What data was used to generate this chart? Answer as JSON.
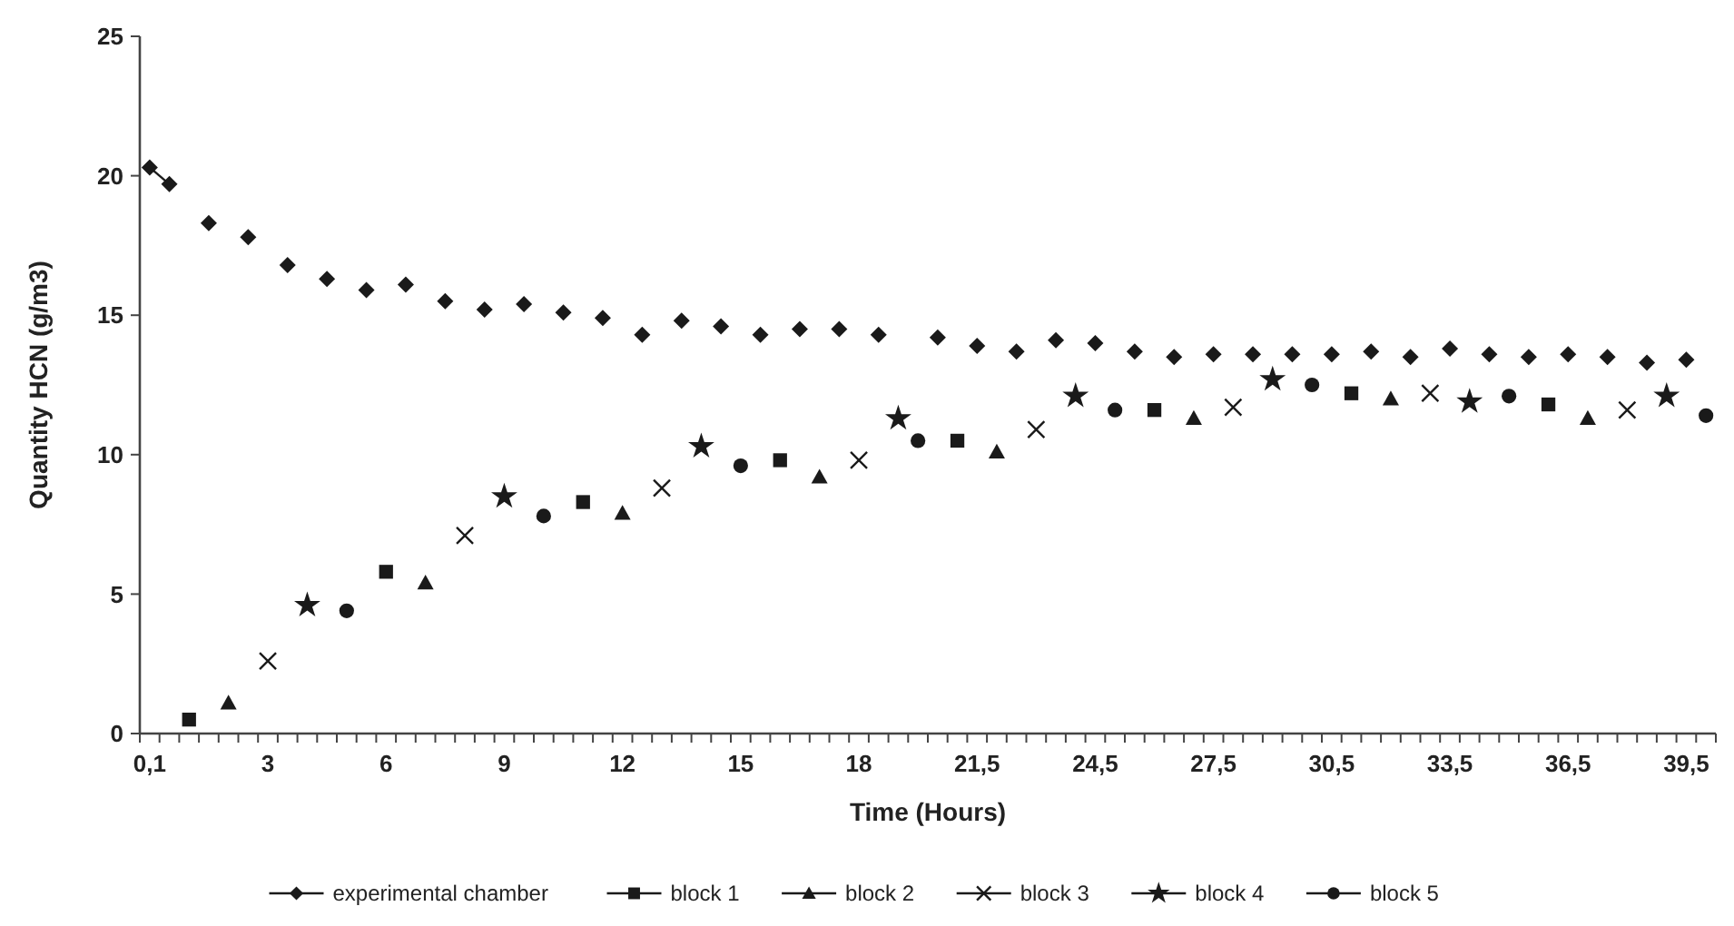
{
  "chart_data": {
    "type": "line",
    "xlabel": "Time (Hours)",
    "ylabel": "Quantity HCN (g/m3)",
    "categories": [
      "0,1",
      null,
      null,
      null,
      null,
      null,
      "3",
      null,
      null,
      null,
      null,
      null,
      "6",
      null,
      null,
      null,
      null,
      null,
      "9",
      null,
      null,
      null,
      null,
      null,
      "12",
      null,
      null,
      null,
      null,
      null,
      "15",
      null,
      null,
      null,
      null,
      null,
      "18",
      null,
      null,
      null,
      null,
      null,
      "21,5",
      null,
      null,
      null,
      null,
      null,
      "24,5",
      null,
      null,
      null,
      null,
      null,
      "27,5",
      null,
      null,
      null,
      null,
      null,
      "30,5",
      null,
      null,
      null,
      null,
      null,
      "33,5",
      null,
      null,
      null,
      null,
      null,
      "36,5",
      null,
      null,
      null,
      null,
      null,
      "39,5",
      null
    ],
    "ylim": [
      0,
      25
    ],
    "yticks": [
      0,
      5,
      10,
      15,
      20,
      25
    ],
    "grid": false,
    "legend": "bottom",
    "line_style": "solid",
    "series": [
      {
        "name": "experimental chamber",
        "color": "#1a1a1a",
        "marker": "diamond",
        "values": [
          20.3,
          19.7,
          null,
          18.3,
          null,
          17.8,
          null,
          16.8,
          null,
          16.3,
          null,
          15.9,
          null,
          16.1,
          null,
          15.5,
          null,
          15.2,
          null,
          15.4,
          null,
          15.1,
          null,
          14.9,
          null,
          14.3,
          null,
          14.8,
          null,
          14.6,
          null,
          14.3,
          null,
          14.5,
          null,
          14.5,
          null,
          14.3,
          null,
          null,
          14.2,
          null,
          13.9,
          null,
          13.7,
          null,
          14.1,
          null,
          14.0,
          null,
          13.7,
          null,
          13.5,
          null,
          13.6,
          null,
          13.6,
          null,
          13.6,
          null,
          13.6,
          null,
          13.7,
          null,
          13.5,
          null,
          13.8,
          null,
          13.6,
          null,
          13.5,
          null,
          13.6,
          null,
          13.5,
          null,
          13.3,
          null,
          13.4,
          null
        ]
      },
      {
        "name": "block 1",
        "type": "scatter",
        "color": "#1a1a1a",
        "marker": "square",
        "values": [
          null,
          null,
          0.5,
          null,
          null,
          null,
          null,
          null,
          null,
          null,
          null,
          null,
          5.8,
          null,
          null,
          null,
          null,
          null,
          null,
          null,
          null,
          null,
          8.3,
          null,
          null,
          null,
          null,
          null,
          null,
          null,
          null,
          null,
          9.8,
          null,
          null,
          null,
          null,
          null,
          null,
          null,
          null,
          10.5,
          null,
          null,
          null,
          null,
          null,
          null,
          null,
          null,
          null,
          11.6,
          null,
          null,
          null,
          null,
          null,
          null,
          null,
          null,
          null,
          12.2,
          null,
          null,
          null,
          null,
          null,
          null,
          null,
          null,
          null,
          11.8,
          null,
          null,
          null,
          null,
          null,
          null,
          null,
          null
        ]
      },
      {
        "name": "block 2",
        "type": "scatter",
        "color": "#1a1a1a",
        "marker": "triangle",
        "values": [
          null,
          null,
          null,
          null,
          1.1,
          null,
          null,
          null,
          null,
          null,
          null,
          null,
          null,
          null,
          5.4,
          null,
          null,
          null,
          null,
          null,
          null,
          null,
          null,
          null,
          7.9,
          null,
          null,
          null,
          null,
          null,
          null,
          null,
          null,
          null,
          9.2,
          null,
          null,
          null,
          null,
          null,
          null,
          null,
          null,
          10.1,
          null,
          null,
          null,
          null,
          null,
          null,
          null,
          null,
          null,
          11.3,
          null,
          null,
          null,
          null,
          null,
          null,
          null,
          null,
          null,
          12.0,
          null,
          null,
          null,
          null,
          null,
          null,
          null,
          null,
          null,
          11.3,
          null,
          null,
          null,
          null,
          null,
          null
        ]
      },
      {
        "name": "block 3",
        "type": "scatter",
        "color": "#1a1a1a",
        "marker": "cross",
        "values": [
          null,
          null,
          null,
          null,
          null,
          null,
          2.6,
          null,
          null,
          null,
          null,
          null,
          null,
          null,
          null,
          null,
          7.1,
          null,
          null,
          null,
          null,
          null,
          null,
          null,
          null,
          null,
          8.8,
          null,
          null,
          null,
          null,
          null,
          null,
          null,
          null,
          null,
          9.8,
          null,
          null,
          null,
          null,
          null,
          null,
          null,
          null,
          10.9,
          null,
          null,
          null,
          null,
          null,
          null,
          null,
          null,
          null,
          11.7,
          null,
          null,
          null,
          null,
          null,
          null,
          null,
          null,
          null,
          12.2,
          null,
          null,
          null,
          null,
          null,
          null,
          null,
          null,
          null,
          11.6,
          null,
          null,
          null,
          null
        ]
      },
      {
        "name": "block 4",
        "type": "scatter",
        "color": "#1a1a1a",
        "marker": "star",
        "values": [
          null,
          null,
          null,
          null,
          null,
          null,
          null,
          null,
          4.6,
          null,
          null,
          null,
          null,
          null,
          null,
          null,
          null,
          null,
          8.5,
          null,
          null,
          null,
          null,
          null,
          null,
          null,
          null,
          null,
          10.3,
          null,
          null,
          null,
          null,
          null,
          null,
          null,
          null,
          null,
          11.3,
          null,
          null,
          null,
          null,
          null,
          null,
          null,
          null,
          12.1,
          null,
          null,
          null,
          null,
          null,
          null,
          null,
          null,
          null,
          12.7,
          null,
          null,
          null,
          null,
          null,
          null,
          null,
          null,
          null,
          11.9,
          null,
          null,
          null,
          null,
          null,
          null,
          null,
          null,
          null,
          12.1,
          null,
          null
        ]
      },
      {
        "name": "block 5",
        "type": "scatter",
        "color": "#1a1a1a",
        "marker": "circle",
        "values": [
          null,
          null,
          null,
          null,
          null,
          null,
          null,
          null,
          null,
          null,
          4.4,
          null,
          null,
          null,
          null,
          null,
          null,
          null,
          null,
          null,
          7.8,
          null,
          null,
          null,
          null,
          null,
          null,
          null,
          null,
          null,
          9.6,
          null,
          null,
          null,
          null,
          null,
          null,
          null,
          null,
          10.5,
          null,
          null,
          null,
          null,
          null,
          null,
          null,
          null,
          null,
          11.6,
          null,
          null,
          null,
          null,
          null,
          null,
          null,
          null,
          null,
          12.5,
          null,
          null,
          null,
          null,
          null,
          null,
          null,
          null,
          null,
          12.1,
          null,
          null,
          null,
          null,
          null,
          null,
          null,
          null,
          null,
          11.4
        ]
      }
    ]
  }
}
